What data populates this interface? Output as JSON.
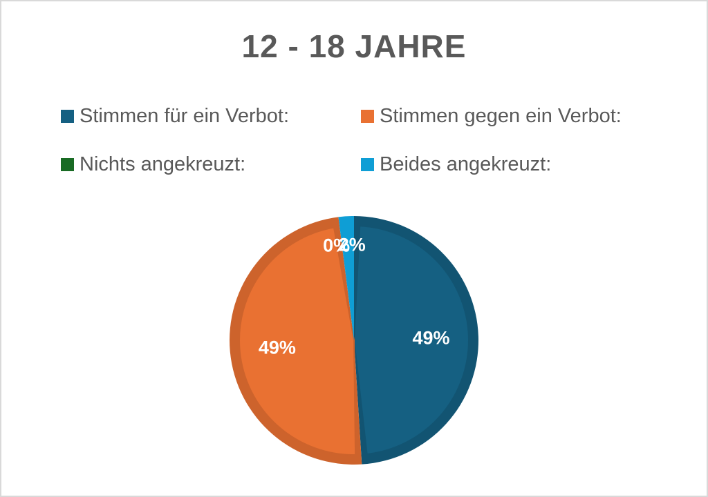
{
  "chart_data": {
    "type": "pie",
    "title": "12 - 18 JAHRE",
    "legend_position": "top",
    "slices": [
      {
        "name": "Stimmen für ein Verbot:",
        "value": 49,
        "label": "49%",
        "color": "#156082"
      },
      {
        "name": "Stimmen gegen ein Verbot:",
        "value": 49,
        "label": "49%",
        "color": "#e97132"
      },
      {
        "name": "Nichts angekreuzt:",
        "value": 0,
        "label": "0%",
        "color": "#196b24"
      },
      {
        "name": "Beides angekreuzt:",
        "value": 2,
        "label": "2%",
        "color": "#0f9ed5"
      }
    ]
  }
}
